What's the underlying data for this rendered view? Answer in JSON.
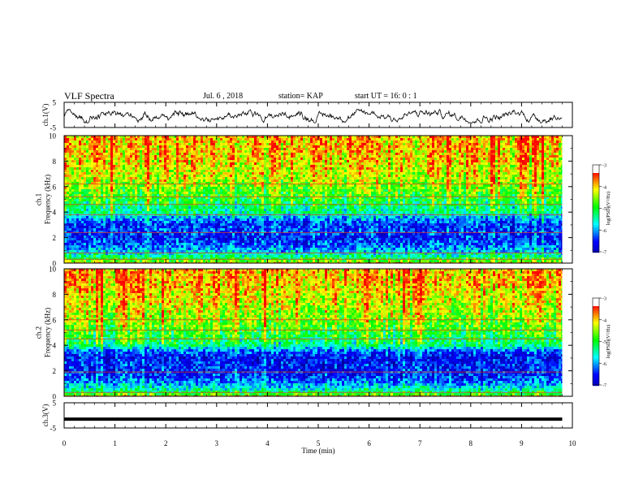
{
  "header": {
    "title": "VLF Spectra",
    "date": "Jul. 6 , 2018",
    "station": "station= KAP",
    "start": "start UT = 16: 0 : 1"
  },
  "chart_data": [
    {
      "type": "line",
      "panel": "ch1-waveform",
      "ylabel": "ch.1(V)",
      "xlim": [
        0,
        10
      ],
      "ylim": [
        -5,
        5
      ],
      "yticks": [
        "5",
        "-5"
      ],
      "x_end": 9.8,
      "description_values": "noisy waveform oscillating roughly between -3 and 2 V",
      "line_color": "#000000"
    },
    {
      "type": "heatmap",
      "panel": "ch1-spectrogram",
      "ylabel": "ch.1\nFrequency (kHz)",
      "ylabel_lines": [
        "ch.1",
        "Frequency (kHz)"
      ],
      "xlim": [
        0,
        10
      ],
      "ylim": [
        0,
        10
      ],
      "yticks": [
        "0",
        "2",
        "4",
        "6",
        "8",
        "10"
      ],
      "x_end": 9.8,
      "colorbar": {
        "label": "log(PSD)(V²/Hz)",
        "ticks": [
          "-3",
          "-4",
          "-5",
          "-6",
          "-7"
        ],
        "range": [
          -7,
          -3
        ]
      },
      "spectrum_profile_khz_psd": [
        [
          0,
          -4
        ],
        [
          0.5,
          -5
        ],
        [
          1.0,
          -5.6
        ],
        [
          1.5,
          -6.0
        ],
        [
          2.0,
          -6.2
        ],
        [
          2.5,
          -6.0
        ],
        [
          3.0,
          -6.1
        ],
        [
          3.5,
          -5.7
        ],
        [
          4.0,
          -5.0
        ],
        [
          4.5,
          -4.9
        ],
        [
          5.0,
          -4.6
        ],
        [
          5.5,
          -4.4
        ],
        [
          6.0,
          -4.2
        ],
        [
          7.0,
          -3.9
        ],
        [
          8.0,
          -3.7
        ],
        [
          9.0,
          -3.6
        ],
        [
          10.0,
          -3.6
        ]
      ],
      "lines_khz": [
        0.3,
        0.8,
        2.4,
        3.8,
        4.6,
        5.2,
        6.2
      ]
    },
    {
      "type": "heatmap",
      "panel": "ch2-spectrogram",
      "ylabel": "ch.2\nFrequency (kHz)",
      "ylabel_lines": [
        "ch.2",
        "Frequency (kHz)"
      ],
      "xlim": [
        0,
        10
      ],
      "ylim": [
        0,
        10
      ],
      "yticks": [
        "0",
        "2",
        "4",
        "6",
        "8",
        "10"
      ],
      "x_end": 9.8,
      "colorbar": {
        "label": "log(PSD)(V²/Hz)",
        "ticks": [
          "-3",
          "-4",
          "-5",
          "-6",
          "-7"
        ],
        "range": [
          -7,
          -3
        ]
      },
      "spectrum_profile_khz_psd": [
        [
          0,
          -4.2
        ],
        [
          0.5,
          -5.2
        ],
        [
          1.0,
          -5.7
        ],
        [
          1.5,
          -6.1
        ],
        [
          2.0,
          -6.2
        ],
        [
          2.5,
          -6.2
        ],
        [
          3.0,
          -6.3
        ],
        [
          3.5,
          -6.0
        ],
        [
          4.0,
          -5.0
        ],
        [
          4.5,
          -4.8
        ],
        [
          5.0,
          -4.6
        ],
        [
          5.5,
          -4.4
        ],
        [
          6.0,
          -4.2
        ],
        [
          7.0,
          -4.0
        ],
        [
          8.0,
          -3.8
        ],
        [
          9.0,
          -3.6
        ],
        [
          10.0,
          -3.6
        ]
      ],
      "lines_khz": [
        0.3,
        1.9,
        4.5,
        5.2,
        6.0
      ]
    },
    {
      "type": "line",
      "panel": "ch3-waveform",
      "ylabel": "ch.3(V)",
      "xlim": [
        0,
        10
      ],
      "ylim": [
        -5,
        5
      ],
      "yticks": [
        "5",
        "-5"
      ],
      "x_end": 9.8,
      "constant_value": -1.5,
      "line_color": "#000000"
    }
  ],
  "xaxis": {
    "label": "Time (min)",
    "ticks": [
      "0",
      "1",
      "2",
      "3",
      "4",
      "5",
      "6",
      "7",
      "8",
      "9",
      "10"
    ]
  },
  "colors": {
    "colormap": [
      "#00008f",
      "#0000ff",
      "#00ffff",
      "#00ff00",
      "#ffff00",
      "#ff0000",
      "#ffffff"
    ]
  }
}
